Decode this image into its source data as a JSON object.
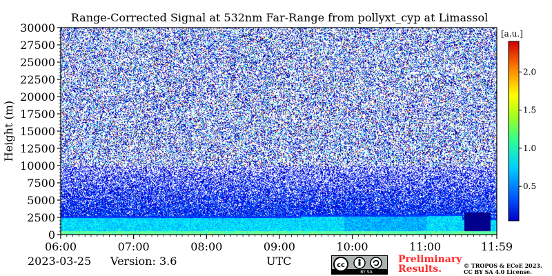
{
  "chart_data": {
    "type": "heatmap",
    "title": "Range-Corrected Signal at 532nm Far-Range from pollyxt_cyp at Limassol",
    "xlabel": "UTC",
    "ylabel": "Height (m)",
    "x_ticks": [
      "06:00",
      "07:00",
      "08:00",
      "09:00",
      "10:00",
      "11:00",
      "11:59"
    ],
    "x_range_hours": [
      6.0,
      11.983
    ],
    "y_ticks": [
      0,
      2500,
      5000,
      7500,
      10000,
      12500,
      15000,
      17500,
      20000,
      22500,
      25000,
      27500,
      30000
    ],
    "ylim": [
      0,
      30000
    ],
    "colorbar": {
      "label": "[a.u.]",
      "ticks": [
        0.5,
        1.0,
        1.5,
        2.0
      ],
      "range": [
        0.05,
        2.4
      ],
      "colormap": "jet"
    },
    "layers": [
      {
        "height_range_m": [
          0,
          600
        ],
        "signal": 1.15
      },
      {
        "height_range_m": [
          600,
          2700
        ],
        "signal": 0.9
      },
      {
        "height_range_m": [
          2700,
          3300
        ],
        "signal": 0.5
      },
      {
        "height_range_m": [
          3300,
          10000
        ],
        "signal": "noisy, decreasing with height"
      },
      {
        "height_range_m": [
          10000,
          30000
        ],
        "signal": "noise"
      }
    ],
    "grid": false
  },
  "footer": {
    "date": "2023-03-25",
    "version": "Version: 3.6",
    "license_badge": "BY SA",
    "preliminary_line1": "Preliminary",
    "preliminary_line2": "Results.",
    "copyright_line1": "© TROPOS & ECoE 2023.",
    "copyright_line2": "CC BY SA 4.0 License."
  },
  "colors": {
    "background": "#ffffff",
    "preliminary_text": "#ff2a2a"
  }
}
